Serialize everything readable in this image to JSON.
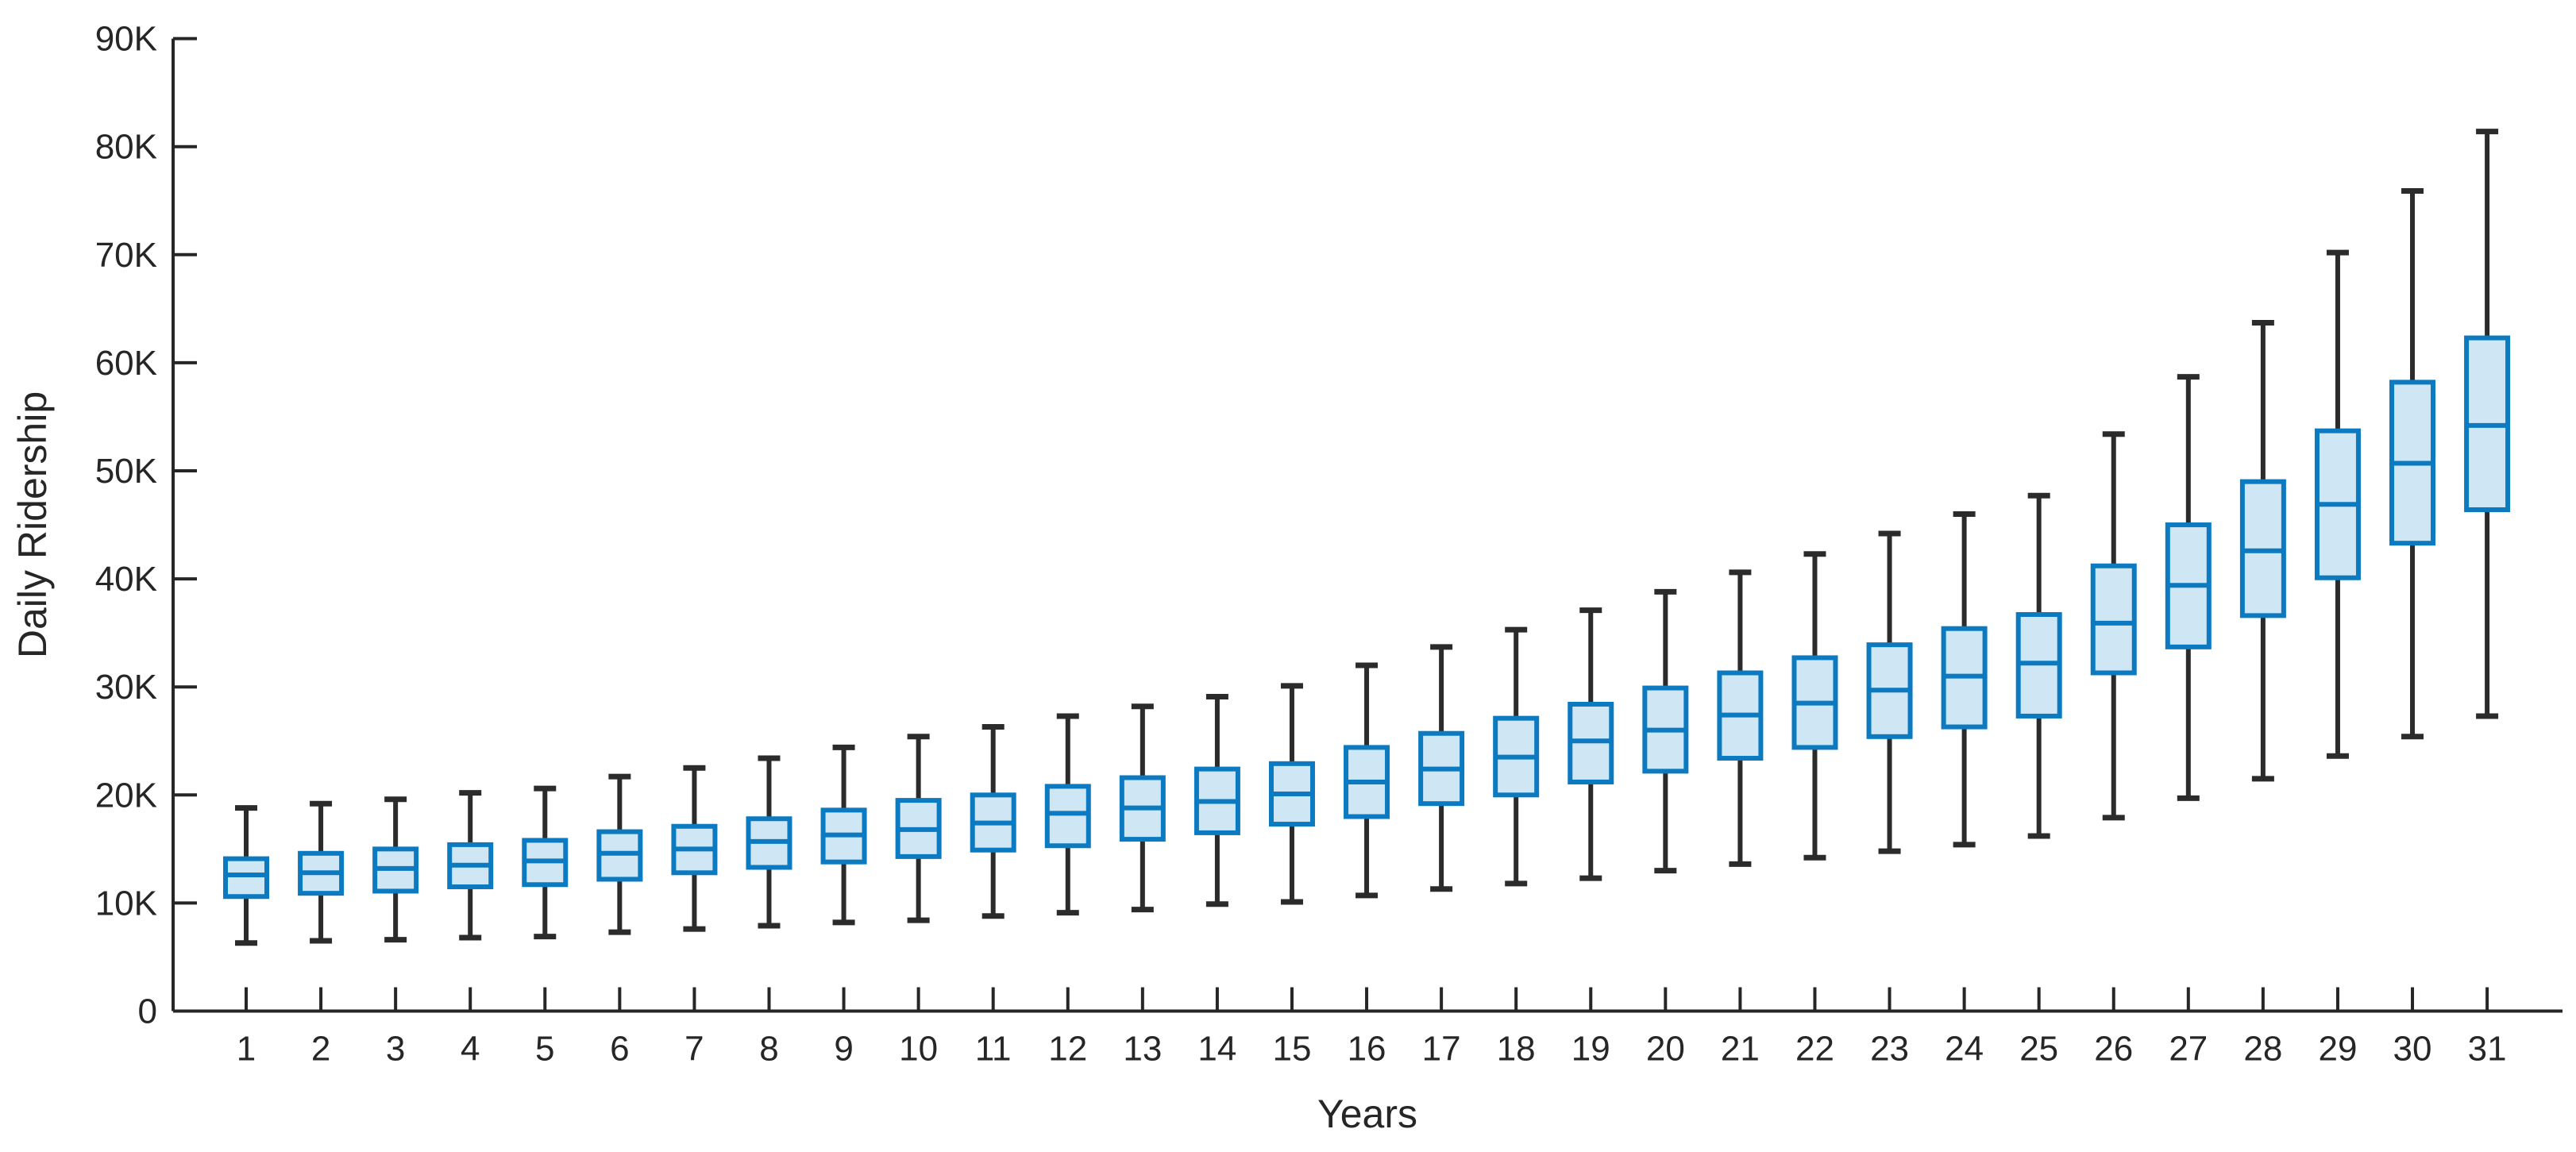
{
  "chart_data": {
    "type": "boxplot",
    "title": "",
    "xlabel": "Years",
    "ylabel": "Daily Ridership",
    "legend": "none",
    "grid": "off",
    "x": [
      1,
      2,
      3,
      4,
      5,
      6,
      7,
      8,
      9,
      10,
      11,
      12,
      13,
      14,
      15,
      16,
      17,
      18,
      19,
      20,
      21,
      22,
      23,
      24,
      25,
      26,
      27,
      28,
      29,
      30,
      31
    ],
    "y_axis": {
      "min": 0,
      "max": 90000,
      "tick_step": 10000,
      "tick_labels": [
        "0",
        "10K",
        "20K",
        "30K",
        "40K",
        "50K",
        "60K",
        "70K",
        "80K",
        "90K"
      ]
    },
    "series": [
      {
        "year": 1,
        "whisker_low": 6300,
        "q1": 10600,
        "median": 12600,
        "q3": 14100,
        "whisker_high": 18800
      },
      {
        "year": 2,
        "whisker_low": 6500,
        "q1": 10900,
        "median": 12800,
        "q3": 14600,
        "whisker_high": 19200
      },
      {
        "year": 3,
        "whisker_low": 6600,
        "q1": 11100,
        "median": 13200,
        "q3": 15000,
        "whisker_high": 19600
      },
      {
        "year": 4,
        "whisker_low": 6800,
        "q1": 11500,
        "median": 13500,
        "q3": 15400,
        "whisker_high": 20200
      },
      {
        "year": 5,
        "whisker_low": 6900,
        "q1": 11700,
        "median": 13900,
        "q3": 15800,
        "whisker_high": 20600
      },
      {
        "year": 6,
        "whisker_low": 7300,
        "q1": 12200,
        "median": 14600,
        "q3": 16600,
        "whisker_high": 21700
      },
      {
        "year": 7,
        "whisker_low": 7600,
        "q1": 12800,
        "median": 15000,
        "q3": 17100,
        "whisker_high": 22500
      },
      {
        "year": 8,
        "whisker_low": 7900,
        "q1": 13300,
        "median": 15700,
        "q3": 17800,
        "whisker_high": 23400
      },
      {
        "year": 9,
        "whisker_low": 8200,
        "q1": 13800,
        "median": 16300,
        "q3": 18600,
        "whisker_high": 24400
      },
      {
        "year": 10,
        "whisker_low": 8400,
        "q1": 14300,
        "median": 16800,
        "q3": 19500,
        "whisker_high": 25400
      },
      {
        "year": 11,
        "whisker_low": 8800,
        "q1": 14900,
        "median": 17400,
        "q3": 20000,
        "whisker_high": 26300
      },
      {
        "year": 12,
        "whisker_low": 9100,
        "q1": 15300,
        "median": 18300,
        "q3": 20800,
        "whisker_high": 27300
      },
      {
        "year": 13,
        "whisker_low": 9400,
        "q1": 15900,
        "median": 18800,
        "q3": 21600,
        "whisker_high": 28200
      },
      {
        "year": 14,
        "whisker_low": 9900,
        "q1": 16500,
        "median": 19400,
        "q3": 22400,
        "whisker_high": 29100
      },
      {
        "year": 15,
        "whisker_low": 10100,
        "q1": 17300,
        "median": 20100,
        "q3": 22900,
        "whisker_high": 30100
      },
      {
        "year": 16,
        "whisker_low": 10700,
        "q1": 18000,
        "median": 21200,
        "q3": 24400,
        "whisker_high": 32000
      },
      {
        "year": 17,
        "whisker_low": 11300,
        "q1": 19200,
        "median": 22400,
        "q3": 25700,
        "whisker_high": 33700
      },
      {
        "year": 18,
        "whisker_low": 11800,
        "q1": 20000,
        "median": 23500,
        "q3": 27100,
        "whisker_high": 35300
      },
      {
        "year": 19,
        "whisker_low": 12300,
        "q1": 21200,
        "median": 25000,
        "q3": 28400,
        "whisker_high": 37100
      },
      {
        "year": 20,
        "whisker_low": 13000,
        "q1": 22200,
        "median": 26000,
        "q3": 29900,
        "whisker_high": 38800
      },
      {
        "year": 21,
        "whisker_low": 13600,
        "q1": 23400,
        "median": 27400,
        "q3": 31300,
        "whisker_high": 40600
      },
      {
        "year": 22,
        "whisker_low": 14200,
        "q1": 24400,
        "median": 28500,
        "q3": 32700,
        "whisker_high": 42300
      },
      {
        "year": 23,
        "whisker_low": 14800,
        "q1": 25400,
        "median": 29700,
        "q3": 33900,
        "whisker_high": 44200
      },
      {
        "year": 24,
        "whisker_low": 15400,
        "q1": 26300,
        "median": 31000,
        "q3": 35400,
        "whisker_high": 46000
      },
      {
        "year": 25,
        "whisker_low": 16200,
        "q1": 27300,
        "median": 32200,
        "q3": 36700,
        "whisker_high": 47700
      },
      {
        "year": 26,
        "whisker_low": 17900,
        "q1": 31300,
        "median": 35900,
        "q3": 41200,
        "whisker_high": 53400
      },
      {
        "year": 27,
        "whisker_low": 19700,
        "q1": 33700,
        "median": 39400,
        "q3": 45000,
        "whisker_high": 58700
      },
      {
        "year": 28,
        "whisker_low": 21500,
        "q1": 36600,
        "median": 42600,
        "q3": 49000,
        "whisker_high": 63700
      },
      {
        "year": 29,
        "whisker_low": 23600,
        "q1": 40100,
        "median": 46900,
        "q3": 53700,
        "whisker_high": 70200
      },
      {
        "year": 30,
        "whisker_low": 25400,
        "q1": 43300,
        "median": 50700,
        "q3": 58200,
        "whisker_high": 75900
      },
      {
        "year": 31,
        "whisker_low": 27300,
        "q1": 46400,
        "median": 54200,
        "q3": 62300,
        "whisker_high": 81400
      }
    ]
  },
  "style": {
    "box_fill": "#cfe6f4",
    "box_edge": "#0b7ac0",
    "median_color": "#0b7ac0",
    "whisker_color": "#2b2b2b",
    "axis_color": "#262626",
    "text_color": "#262626",
    "background": "#ffffff"
  }
}
